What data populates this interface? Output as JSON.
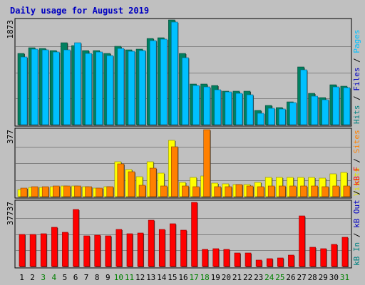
{
  "chart_data": {
    "type": "bar",
    "title": "Daily usage for August 2019",
    "categories": [
      "1",
      "2",
      "3",
      "4",
      "5",
      "6",
      "7",
      "8",
      "9",
      "10",
      "11",
      "12",
      "13",
      "14",
      "15",
      "16",
      "17",
      "18",
      "19",
      "20",
      "21",
      "22",
      "23",
      "24",
      "25",
      "26",
      "27",
      "28",
      "29",
      "30",
      "31"
    ],
    "weekend_days": [
      3,
      4,
      10,
      11,
      17,
      18,
      24,
      25,
      31
    ],
    "panels": [
      {
        "id": "hits-files-pages",
        "max_label": "1873",
        "ylim": [
          0,
          1873
        ],
        "right_labels": [
          {
            "text": "Hits",
            "color": "#008080"
          },
          {
            "text": " / ",
            "color": "#000000"
          },
          {
            "text": "Files",
            "color": "#0000c0"
          },
          {
            "text": " / ",
            "color": "#000000"
          },
          {
            "text": "Pages",
            "color": "#00c0ff"
          }
        ],
        "series": [
          {
            "name": "Hits",
            "color": "#008060",
            "values": [
              1270,
              1380,
              1360,
              1330,
              1460,
              1420,
              1330,
              1330,
              1270,
              1400,
              1340,
              1350,
              1540,
              1560,
              1870,
              1280,
              720,
              720,
              700,
              600,
              600,
              600,
              250,
              340,
              310,
              410,
              1030,
              560,
              480,
              710,
              690
            ]
          },
          {
            "name": "Files",
            "color": "#00c0ff",
            "values": [
              1210,
              1350,
              1340,
              1300,
              1340,
              1460,
              1270,
              1300,
              1230,
              1360,
              1310,
              1320,
              1500,
              1530,
              1840,
              1200,
              700,
              670,
              630,
              580,
              560,
              540,
              200,
              290,
              280,
              400,
              980,
              510,
              440,
              680,
              660
            ]
          }
        ]
      },
      {
        "id": "visits-sites",
        "max_label": "377",
        "ylim": [
          0,
          377
        ],
        "right_labels": [
          {
            "text": "Visits",
            "color": "#e0e000"
          },
          {
            "text": " / ",
            "color": "#000000"
          },
          {
            "text": "Sites",
            "color": "#ff8000"
          }
        ],
        "series": [
          {
            "name": "Visits",
            "color": "#ffff00",
            "values": [
              42,
              52,
              52,
              56,
              60,
              62,
              55,
              50,
              58,
              195,
              152,
              112,
              198,
              133,
              315,
              80,
              110,
              118,
              75,
              72,
              70,
              68,
              82,
              110,
              108,
              108,
              108,
              110,
              105,
              130,
              135
            ]
          },
          {
            "name": "Sites",
            "color": "#ff8000",
            "values": [
              48,
              55,
              56,
              60,
              62,
              62,
              55,
              50,
              58,
              185,
              140,
              65,
              160,
              60,
              280,
              62,
              57,
              375,
              55,
              58,
              70,
              60,
              58,
              60,
              60,
              60,
              60,
              60,
              55,
              60,
              60
            ]
          }
        ]
      },
      {
        "id": "kbytes",
        "max_label": "37737",
        "ylim": [
          0,
          37737
        ],
        "right_labels": [
          {
            "text": "kB In",
            "color": "#008080"
          },
          {
            "text": " / ",
            "color": "#000000"
          },
          {
            "text": "kB Out",
            "color": "#0000c0"
          },
          {
            "text": " / ",
            "color": "#000000"
          },
          {
            "text": "kB F",
            "color": "#ff0000"
          }
        ],
        "series": [
          {
            "name": "kB F",
            "color": "#ff0000",
            "values": [
              18500,
              18800,
              19000,
              22700,
              19800,
              33000,
              17900,
              18200,
              17800,
              21500,
              19000,
              19400,
              27000,
              21700,
              24800,
              21200,
              37500,
              10000,
              10300,
              9800,
              8000,
              8000,
              3900,
              4700,
              5000,
              6700,
              29400,
              11000,
              10500,
              13000,
              16800
            ]
          }
        ]
      }
    ]
  }
}
